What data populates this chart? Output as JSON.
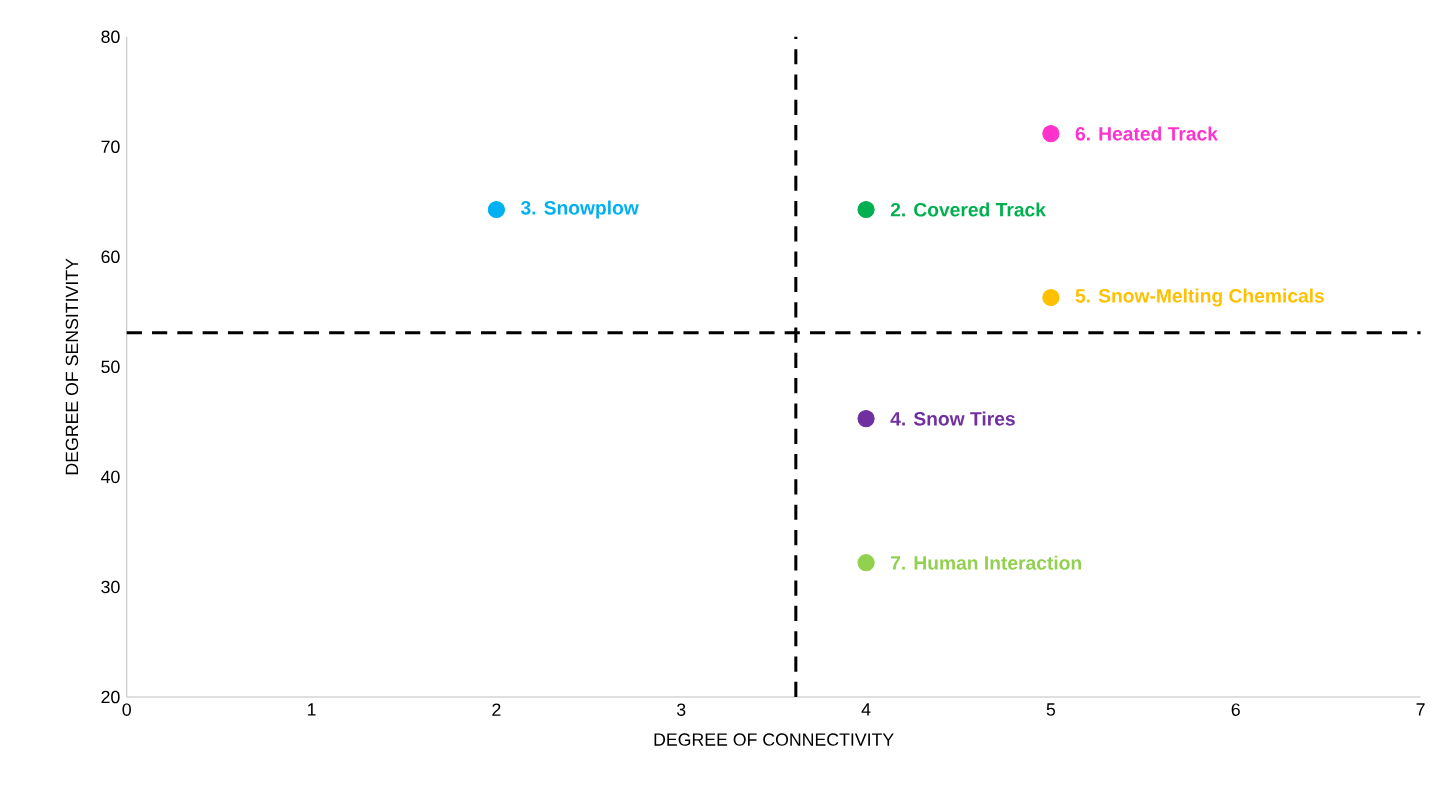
{
  "chart_data": {
    "type": "scatter",
    "xlabel": "DEGREE OF CONNECTIVITY",
    "ylabel": "DEGREE OF SENSITIVITY",
    "xlim": [
      0,
      7
    ],
    "ylim": [
      20,
      80
    ],
    "xticks": [
      0,
      1,
      2,
      3,
      4,
      5,
      6,
      7
    ],
    "yticks": [
      20,
      30,
      40,
      50,
      60,
      70,
      80
    ],
    "grid": false,
    "marker": "circle",
    "series": [
      {
        "name": "3. Snowplow",
        "color": "#00b0f0",
        "x": [
          2
        ],
        "values": [
          64.3
        ]
      },
      {
        "name": "2. Covered Track",
        "color": "#00b050",
        "x": [
          4
        ],
        "values": [
          64.3
        ]
      },
      {
        "name": "6. Heated Track",
        "color": "#ff33cc",
        "x": [
          5
        ],
        "values": [
          71.2
        ]
      },
      {
        "name": "5. Snow-Melting Chemicals",
        "color": "#ffc000",
        "x": [
          5
        ],
        "values": [
          56.3
        ]
      },
      {
        "name": "4. Snow Tires",
        "color": "#7030a0",
        "x": [
          4
        ],
        "values": [
          45.3
        ]
      },
      {
        "name": "7. Human Interaction",
        "color": "#92d050",
        "x": [
          4
        ],
        "values": [
          32.2
        ]
      }
    ],
    "ref_lines": [
      {
        "axis": "x",
        "value": 3.62,
        "color": "#000000",
        "line_style": "dashed"
      },
      {
        "axis": "y",
        "value": 53.1,
        "color": "#000000",
        "line_style": "dashed"
      }
    ]
  }
}
